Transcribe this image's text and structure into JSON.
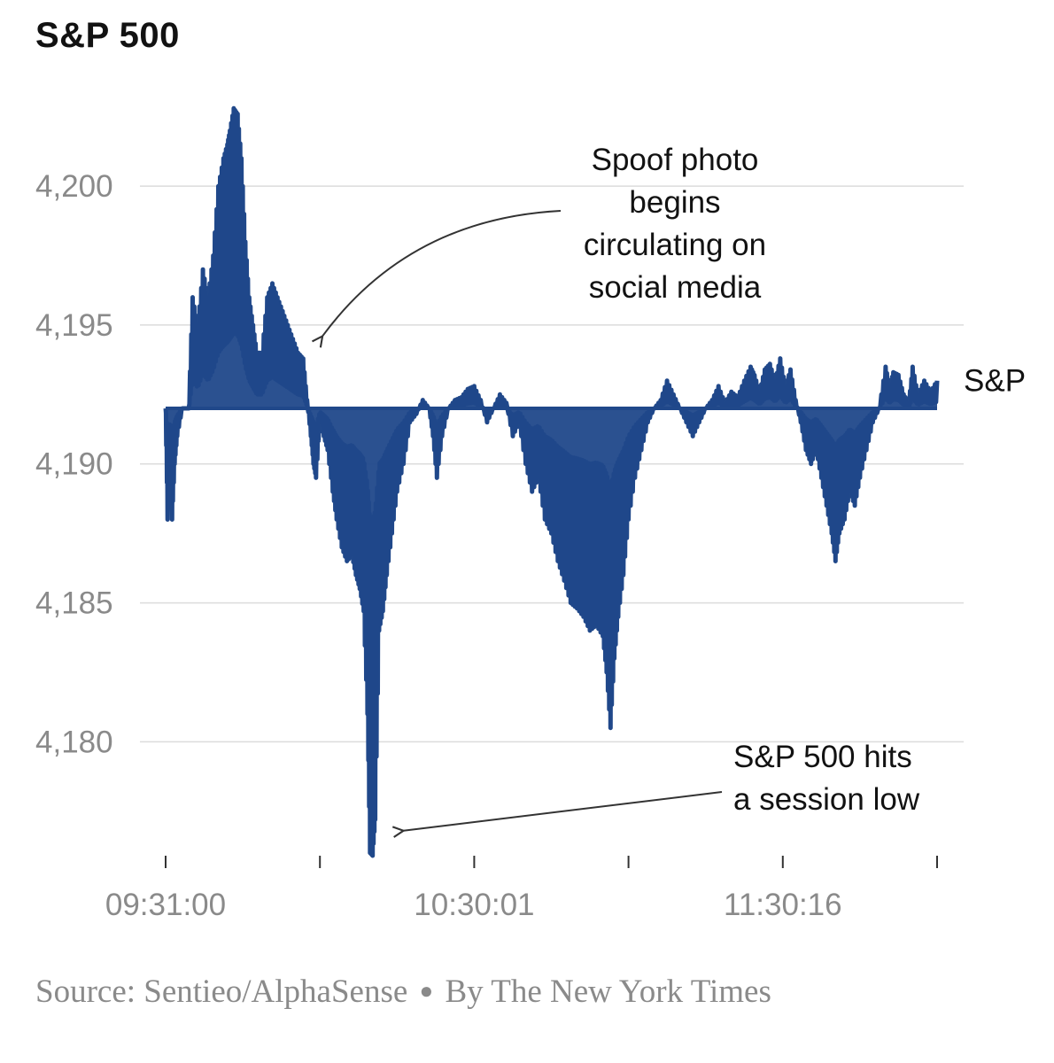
{
  "chart_data": {
    "type": "line",
    "title": "S&P 500",
    "series": [
      {
        "name": "S&P",
        "color": "#20488a",
        "baseline": 4192,
        "points": [
          [
            0,
            4192
          ],
          [
            0.15,
            4188
          ],
          [
            0.3,
            4190
          ],
          [
            0.5,
            4188
          ],
          [
            0.7,
            4190
          ],
          [
            0.9,
            4191
          ],
          [
            1.3,
            4192
          ],
          [
            1.8,
            4192
          ],
          [
            2.1,
            4196
          ],
          [
            2.5,
            4195
          ],
          [
            2.9,
            4197
          ],
          [
            3.3,
            4196
          ],
          [
            3.7,
            4197.5
          ],
          [
            4.1,
            4200
          ],
          [
            4.5,
            4201
          ],
          [
            4.8,
            4201.5
          ],
          [
            5.0,
            4202
          ],
          [
            5.3,
            4202.8
          ],
          [
            5.6,
            4202.6
          ],
          [
            5.9,
            4201
          ],
          [
            6.2,
            4198
          ],
          [
            6.5,
            4196
          ],
          [
            6.8,
            4195
          ],
          [
            7.1,
            4194
          ],
          [
            7.5,
            4194
          ],
          [
            7.9,
            4196
          ],
          [
            8.3,
            4196.5
          ],
          [
            8.7,
            4196
          ],
          [
            9.1,
            4195.5
          ],
          [
            9.5,
            4195
          ],
          [
            9.9,
            4194.5
          ],
          [
            10.3,
            4194
          ],
          [
            10.7,
            4193.8
          ],
          [
            11.0,
            4192.3
          ],
          [
            11.3,
            4191
          ],
          [
            11.5,
            4190
          ],
          [
            11.7,
            4189.5
          ],
          [
            12.0,
            4191.5
          ],
          [
            12.3,
            4191
          ],
          [
            12.6,
            4190.5
          ],
          [
            13.0,
            4189
          ],
          [
            13.3,
            4188
          ],
          [
            13.7,
            4187
          ],
          [
            14.1,
            4186.5
          ],
          [
            14.5,
            4186.7
          ],
          [
            14.8,
            4186
          ],
          [
            15.1,
            4185.5
          ],
          [
            15.4,
            4184.7
          ],
          [
            15.7,
            4181
          ],
          [
            15.9,
            4176
          ],
          [
            16.1,
            4175.9
          ],
          [
            16.3,
            4177.2
          ],
          [
            16.6,
            4184
          ],
          [
            16.9,
            4184.7
          ],
          [
            17.2,
            4186
          ],
          [
            17.6,
            4187.5
          ],
          [
            18.0,
            4189
          ],
          [
            18.5,
            4190
          ],
          [
            19.0,
            4191.5
          ],
          [
            19.5,
            4191.8
          ],
          [
            20.0,
            4192.3
          ],
          [
            20.5,
            4192
          ],
          [
            20.8,
            4191
          ],
          [
            21.1,
            4189.5
          ],
          [
            21.5,
            4191
          ],
          [
            22.0,
            4192
          ],
          [
            22.5,
            4192.3
          ],
          [
            23.0,
            4192.4
          ],
          [
            23.5,
            4192.7
          ],
          [
            24.0,
            4192.8
          ],
          [
            24.5,
            4192.3
          ],
          [
            25.0,
            4191.5
          ],
          [
            25.5,
            4192
          ],
          [
            26.0,
            4192.5
          ],
          [
            26.5,
            4192.2
          ],
          [
            27.0,
            4191
          ],
          [
            27.5,
            4191.5
          ],
          [
            28.0,
            4190
          ],
          [
            28.5,
            4189
          ],
          [
            29.0,
            4189.5
          ],
          [
            29.5,
            4188
          ],
          [
            30.0,
            4187.5
          ],
          [
            30.5,
            4186.5
          ],
          [
            31.0,
            4185.8
          ],
          [
            31.5,
            4185
          ],
          [
            32.0,
            4184.8
          ],
          [
            32.5,
            4184.5
          ],
          [
            33.0,
            4184
          ],
          [
            33.5,
            4184.2
          ],
          [
            34.0,
            4183.8
          ],
          [
            34.3,
            4182.5
          ],
          [
            34.6,
            4180.5
          ],
          [
            34.9,
            4183
          ],
          [
            35.2,
            4184.5
          ],
          [
            35.6,
            4186
          ],
          [
            36.0,
            4188
          ],
          [
            36.5,
            4189.5
          ],
          [
            37.0,
            4190.5
          ],
          [
            37.5,
            4191.5
          ],
          [
            38.0,
            4192
          ],
          [
            38.5,
            4192.3
          ],
          [
            39.0,
            4193
          ],
          [
            39.5,
            4192.5
          ],
          [
            40.0,
            4192
          ],
          [
            40.5,
            4191.5
          ],
          [
            41.0,
            4191
          ],
          [
            41.5,
            4191.5
          ],
          [
            42.0,
            4192
          ],
          [
            42.5,
            4192.3
          ],
          [
            43.0,
            4192.8
          ],
          [
            43.5,
            4192.2
          ],
          [
            44.0,
            4192.6
          ],
          [
            44.5,
            4192.4
          ],
          [
            45.0,
            4193
          ],
          [
            45.5,
            4193.5
          ],
          [
            45.8,
            4193.2
          ],
          [
            46.2,
            4192.6
          ],
          [
            46.6,
            4193.4
          ],
          [
            47.0,
            4193.6
          ],
          [
            47.4,
            4193
          ],
          [
            47.8,
            4193.8
          ],
          [
            48.2,
            4192.8
          ],
          [
            48.6,
            4193.4
          ],
          [
            49.0,
            4192.3
          ],
          [
            49.4,
            4191.5
          ],
          [
            49.8,
            4190.5
          ],
          [
            50.2,
            4190
          ],
          [
            50.6,
            4190.5
          ],
          [
            51.0,
            4189.5
          ],
          [
            51.4,
            4188.5
          ],
          [
            51.8,
            4187.5
          ],
          [
            52.1,
            4186.5
          ],
          [
            52.4,
            4187.5
          ],
          [
            52.8,
            4188
          ],
          [
            53.2,
            4189
          ],
          [
            53.6,
            4188.5
          ],
          [
            54.0,
            4189.5
          ],
          [
            54.5,
            4190.5
          ],
          [
            55.0,
            4191.5
          ],
          [
            55.5,
            4192
          ],
          [
            56.0,
            4193.5
          ],
          [
            56.3,
            4192.8
          ],
          [
            56.6,
            4193.3
          ],
          [
            57.0,
            4193.2
          ],
          [
            57.4,
            4192.5
          ],
          [
            57.8,
            4192.2
          ],
          [
            58.1,
            4193.5
          ],
          [
            58.5,
            4192.5
          ],
          [
            59.0,
            4193
          ],
          [
            59.5,
            4192.6
          ],
          [
            60.0,
            4193
          ]
        ]
      }
    ],
    "x_range": [
      0,
      60
    ],
    "x_ticks": [
      {
        "x": 0,
        "label": "09:31:00"
      },
      {
        "x": 12,
        "label": ""
      },
      {
        "x": 24,
        "label": "10:30:01"
      },
      {
        "x": 36,
        "label": ""
      },
      {
        "x": 48,
        "label": "11:30:16"
      },
      {
        "x": 60,
        "label": ""
      }
    ],
    "ylim": [
      4175.9,
      4203
    ],
    "y_ticks": [
      4180,
      4185,
      4190,
      4195,
      4200
    ],
    "y_tick_labels": [
      "4,180",
      "4,185",
      "4,190",
      "4,195",
      "4,200"
    ],
    "grid": true,
    "annotations": [
      {
        "lines": [
          "Spoof photo",
          "begins",
          "circulating on",
          "social media"
        ],
        "target_x": 12.2,
        "target_y": 4194.6
      },
      {
        "lines": [
          "S&P 500 hits",
          "a session low"
        ],
        "target_x": 18.5,
        "target_y": 4176.8
      }
    ],
    "source": "Source: Sentieo/AlphaSense",
    "credit": "By The New York Times",
    "separator": "●"
  }
}
